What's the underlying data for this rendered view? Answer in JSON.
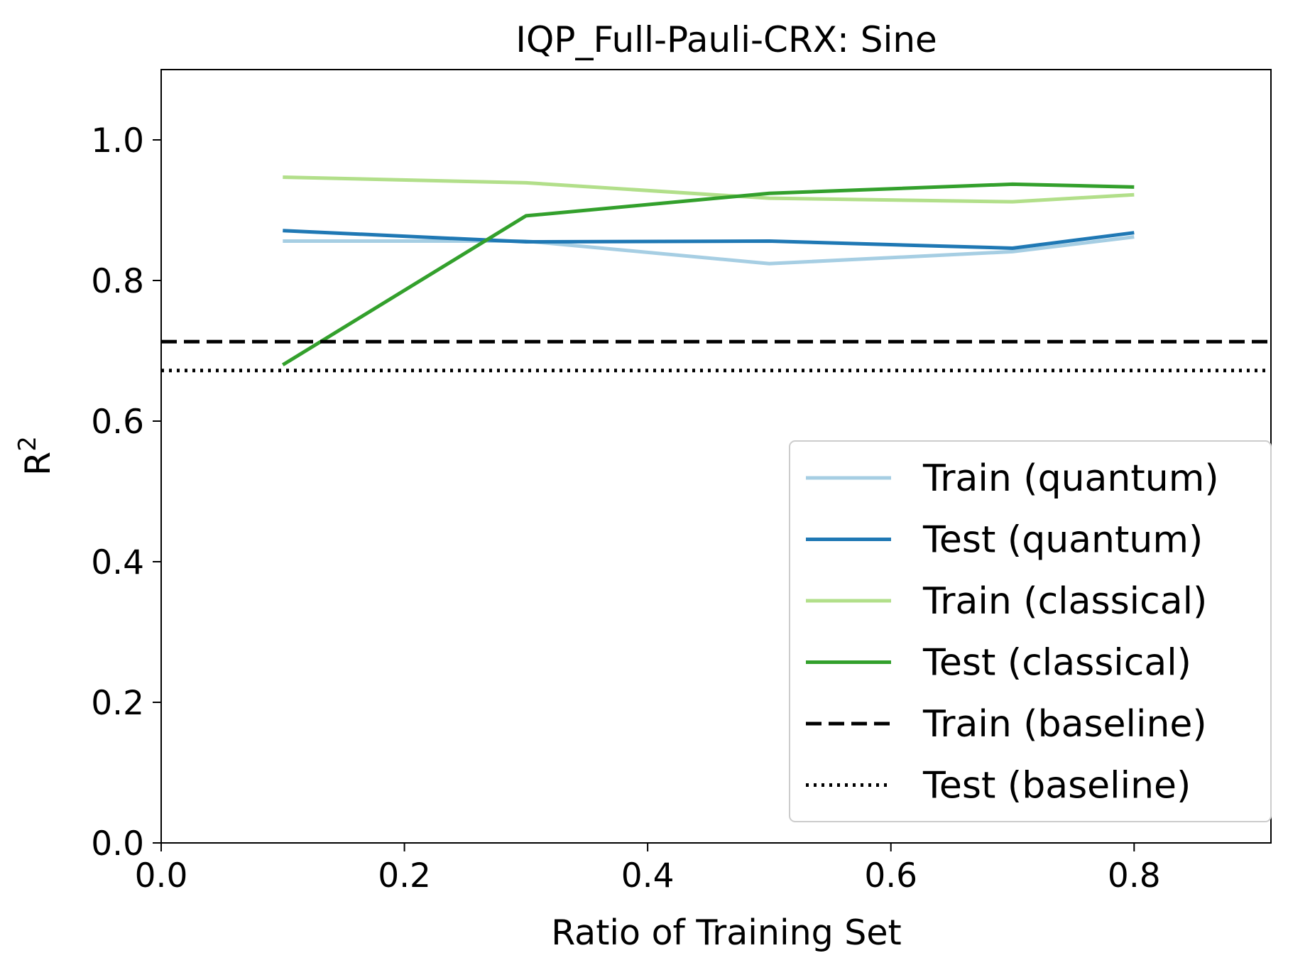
{
  "chart_data": {
    "type": "line",
    "title": "IQP_Full-Pauli-CRX: Sine",
    "xlabel": "Ratio of Training Set",
    "ylabel_base": "R",
    "ylabel_sup": "2",
    "xlim": [
      0.0,
      0.9125
    ],
    "ylim": [
      0.0,
      1.1
    ],
    "xticks": [
      0.0,
      0.2,
      0.4,
      0.6,
      0.8
    ],
    "xtick_labels": [
      "0.0",
      "0.2",
      "0.4",
      "0.6",
      "0.8"
    ],
    "yticks": [
      0.0,
      0.2,
      0.4,
      0.6,
      0.8,
      1.0
    ],
    "ytick_labels": [
      "0.0",
      "0.2",
      "0.4",
      "0.6",
      "0.8",
      "1.0"
    ],
    "grid": false,
    "legend_position": "lower-right",
    "x": [
      0.1,
      0.3,
      0.5,
      0.7,
      0.8
    ],
    "series": [
      {
        "name": "Train (quantum)",
        "color": "#a6cee3",
        "style": "solid",
        "values": [
          0.856,
          0.856,
          0.824,
          0.841,
          0.862
        ]
      },
      {
        "name": "Test (quantum)",
        "color": "#1f78b4",
        "style": "solid",
        "values": [
          0.871,
          0.855,
          0.856,
          0.846,
          0.868
        ]
      },
      {
        "name": "Train (classical)",
        "color": "#b2df8a",
        "style": "solid",
        "values": [
          0.947,
          0.939,
          0.917,
          0.912,
          0.922
        ]
      },
      {
        "name": "Test (classical)",
        "color": "#33a02c",
        "style": "solid",
        "values": [
          0.68,
          0.892,
          0.924,
          0.937,
          0.933
        ]
      }
    ],
    "baselines": [
      {
        "name": "Train (baseline)",
        "color": "#000000",
        "style": "dashed",
        "value": 0.713
      },
      {
        "name": "Test (baseline)",
        "color": "#000000",
        "style": "dotted",
        "value": 0.672
      }
    ]
  }
}
